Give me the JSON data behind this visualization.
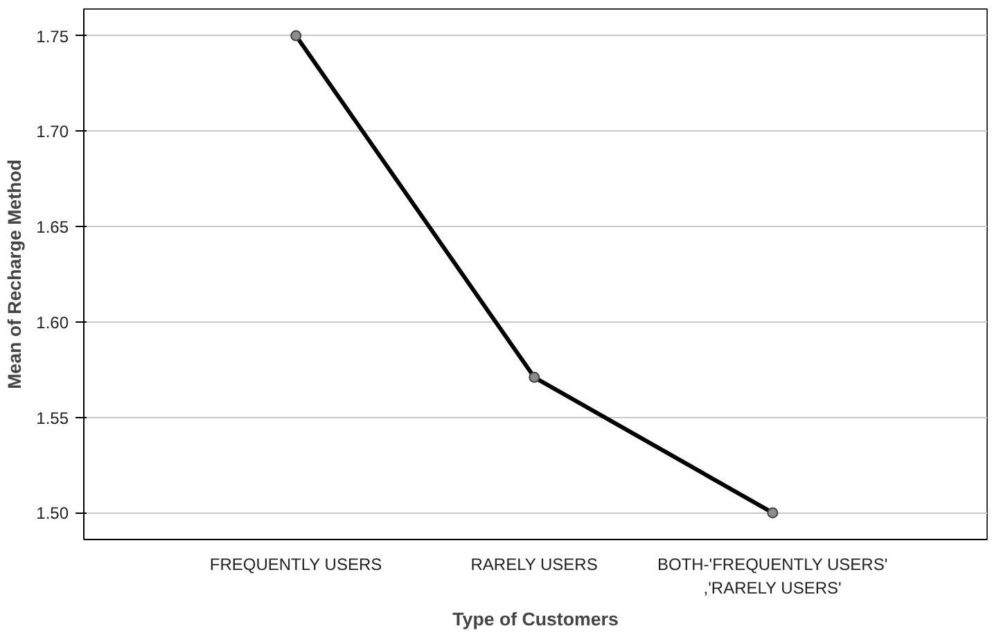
{
  "chart_data": {
    "type": "line",
    "xlabel": "Type of Customers",
    "ylabel": "Mean of Recharge Method",
    "categories": [
      "FREQUENTLY USERS",
      "RARELY USERS",
      "BOTH-'FREQUENTLY USERS'\n,'RARELY USERS'"
    ],
    "series": [
      {
        "color": "#000000",
        "values": [
          1.75,
          1.571,
          1.5
        ]
      }
    ],
    "ylim": [
      1.486,
      1.764
    ],
    "yticks": [
      {
        "value": 1.5,
        "label": "1.50"
      },
      {
        "value": 1.55,
        "label": "1.55"
      },
      {
        "value": 1.6,
        "label": "1.60"
      },
      {
        "value": 1.65,
        "label": "1.65"
      },
      {
        "value": 1.7,
        "label": "1.70"
      },
      {
        "value": 1.75,
        "label": "1.75"
      }
    ],
    "grid": "y",
    "marker": "circle",
    "line_style": "solid"
  }
}
